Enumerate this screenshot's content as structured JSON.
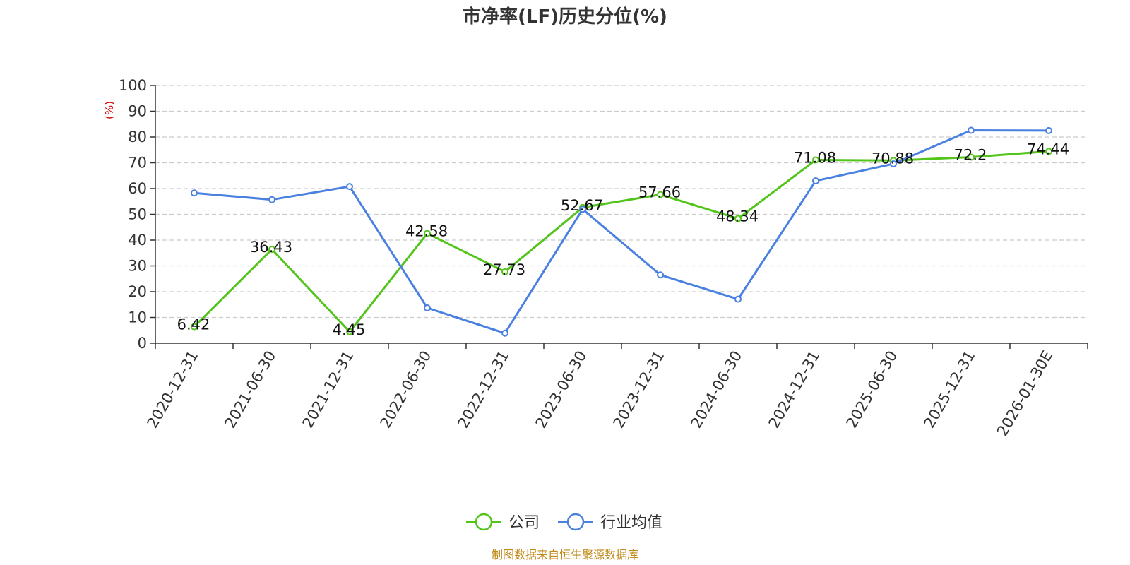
{
  "chart_data": {
    "type": "line",
    "title": "市净率(LF)历史分位(%)",
    "ylabel": "(%)",
    "ylim": [
      0,
      100
    ],
    "yticks": [
      0,
      10,
      20,
      30,
      40,
      50,
      60,
      70,
      80,
      90,
      100
    ],
    "categories": [
      "2020-12-31",
      "2021-06-30",
      "2021-12-31",
      "2022-06-30",
      "2022-12-31",
      "2023-06-30",
      "2023-12-31",
      "2024-06-30",
      "2024-12-31",
      "2025-06-30",
      "2025-12-31",
      "2026-01-30E"
    ],
    "series": [
      {
        "name": "公司",
        "color": "#52c41a",
        "values": [
          6.42,
          36.43,
          4.45,
          42.58,
          27.73,
          52.67,
          57.66,
          48.34,
          71.08,
          70.88,
          72.2,
          74.44
        ],
        "labels": [
          "6.42",
          "36.43",
          "4.45",
          "42.58",
          "27.73",
          "52.67",
          "57.66",
          "48.34",
          "71.08",
          "70.88",
          "72.2",
          "74.44"
        ]
      },
      {
        "name": "行业均值",
        "color": "#4a80e0",
        "values": [
          58.3,
          55.7,
          60.8,
          13.7,
          3.9,
          52.0,
          26.5,
          17.1,
          63.0,
          69.6,
          82.6,
          82.5
        ]
      }
    ],
    "grid": true,
    "legend": "bottom-center",
    "source": "制图数据来自恒生聚源数据库",
    "source_color": "#c08a1a",
    "ylabel_color": "#cc0000"
  }
}
